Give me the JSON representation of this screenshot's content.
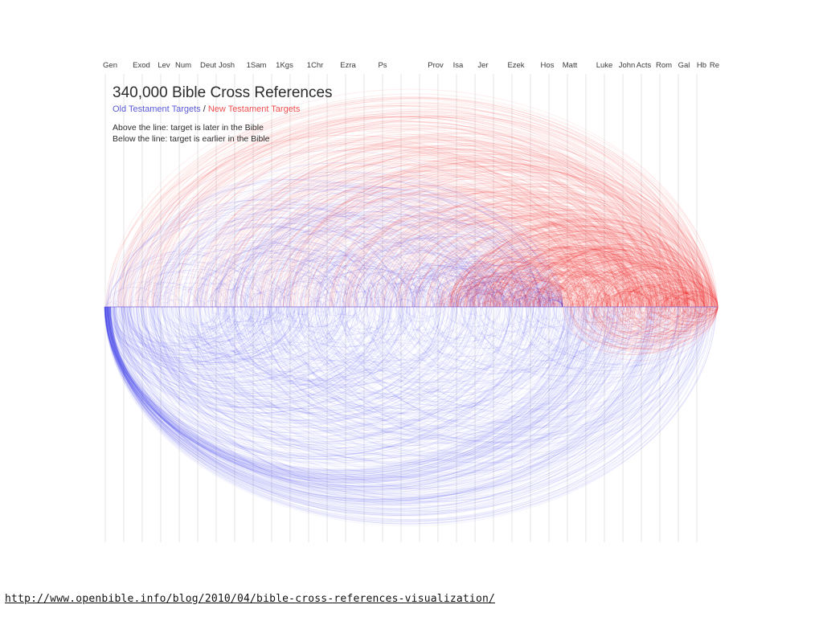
{
  "books": [
    "Gen",
    "Exod",
    "Lev",
    "Num",
    "Deut",
    "Josh",
    "1Sam",
    "1Kgs",
    "1Chr",
    "Ezra",
    "Ps",
    "Prov",
    "Isa",
    "Jer",
    "Ezek",
    "Hos",
    "Matt",
    "Luke",
    "John",
    "Acts",
    "Rom",
    "Gal",
    "Hb",
    "Re"
  ],
  "legend": {
    "title": "340,000 Bible Cross References",
    "old_label": "Old Testament Targets",
    "separator": " / ",
    "new_label": "New Testament Targets",
    "note_above": "Above the line: target is later in the Bible",
    "note_below": "Below the line: target is earlier in the Bible"
  },
  "colors": {
    "old_testament": "#2b2bf0",
    "new_testament": "#f01e1e",
    "gridline": "#e6e6e6"
  },
  "source_url": "http://www.openbible.info/blog/2010/04/bible-cross-references-visualization/"
}
